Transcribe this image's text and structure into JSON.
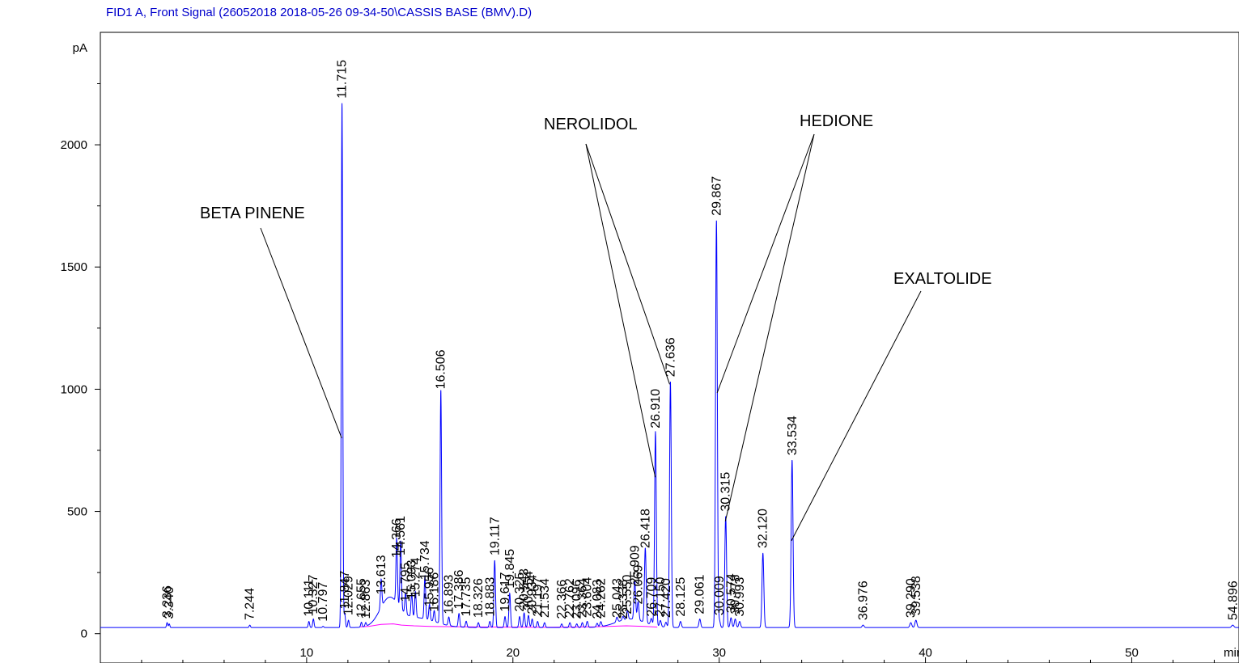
{
  "chart_data": {
    "type": "line",
    "title": "FID1 A, Front Signal (26052018 2018-05-26 09-34-50\\CASSIS BASE (BMV).D)",
    "ylabel": "pA",
    "xlabel": "min",
    "xlim": [
      0,
      55.2
    ],
    "ylim": [
      -120,
      2460
    ],
    "x_ticks": [
      10,
      20,
      30,
      40,
      50
    ],
    "y_ticks": [
      0,
      500,
      1000,
      1500,
      2000
    ],
    "baseline": 25,
    "colors": {
      "signal": "#0000ff",
      "baseline_fit": "#ff00ff",
      "title": "#0000cc"
    },
    "peaks": [
      {
        "rt": 3.236,
        "label": "3.236",
        "height": 45
      },
      {
        "rt": 3.34,
        "label": "3.340",
        "height": 40
      },
      {
        "rt": 7.244,
        "label": "7.244",
        "height": 35
      },
      {
        "rt": 10.111,
        "label": "10.111",
        "height": 50
      },
      {
        "rt": 10.327,
        "label": "10.327",
        "height": 60
      },
      {
        "rt": 10.797,
        "label": "10.797",
        "height": 30
      },
      {
        "rt": 11.715,
        "label": "11.715",
        "height": 2170
      },
      {
        "rt": 11.847,
        "label": "11.847",
        "height": 80
      },
      {
        "rt": 12.029,
        "label": "12.029",
        "height": 55
      },
      {
        "rt": 12.655,
        "label": "12.655",
        "height": 45
      },
      {
        "rt": 12.863,
        "label": "12.863",
        "height": 40
      },
      {
        "rt": 13.613,
        "label": "13.613",
        "height": 140
      },
      {
        "rt": 14.366,
        "label": "14.366",
        "height": 290
      },
      {
        "rt": 14.561,
        "label": "14.561",
        "height": 300
      },
      {
        "rt": 14.795,
        "label": "14.795",
        "height": 110
      },
      {
        "rt": 15.093,
        "label": "15.093",
        "height": 120
      },
      {
        "rt": 15.274,
        "label": "15.274",
        "height": 130
      },
      {
        "rt": 15.734,
        "label": "15.734",
        "height": 200
      },
      {
        "rt": 15.956,
        "label": "15.956",
        "height": 90
      },
      {
        "rt": 16.186,
        "label": "16.186",
        "height": 70
      },
      {
        "rt": 16.506,
        "label": "16.506",
        "height": 980
      },
      {
        "rt": 16.893,
        "label": "16.893",
        "height": 60
      },
      {
        "rt": 17.386,
        "label": "17.386",
        "height": 80
      },
      {
        "rt": 17.735,
        "label": "17.735",
        "height": 50
      },
      {
        "rt": 18.326,
        "label": "18.326",
        "height": 45
      },
      {
        "rt": 18.883,
        "label": "18.883",
        "height": 50
      },
      {
        "rt": 19.117,
        "label": "19.117",
        "height": 300
      },
      {
        "rt": 19.617,
        "label": "19.617",
        "height": 70
      },
      {
        "rt": 19.845,
        "label": "19.845",
        "height": 165
      },
      {
        "rt": 20.325,
        "label": "20.325",
        "height": 70
      },
      {
        "rt": 20.543,
        "label": "20.543",
        "height": 85
      },
      {
        "rt": 20.754,
        "label": "20.754",
        "height": 75
      },
      {
        "rt": 20.934,
        "label": "20.934",
        "height": 60
      },
      {
        "rt": 21.197,
        "label": "21.197",
        "height": 50
      },
      {
        "rt": 21.534,
        "label": "21.534",
        "height": 45
      },
      {
        "rt": 22.366,
        "label": "22.366",
        "height": 40
      },
      {
        "rt": 22.762,
        "label": "22.762",
        "height": 45
      },
      {
        "rt": 23.096,
        "label": "23.096",
        "height": 40
      },
      {
        "rt": 23.364,
        "label": "23.364",
        "height": 45
      },
      {
        "rt": 23.604,
        "label": "23.604",
        "height": 50
      },
      {
        "rt": 24.083,
        "label": "24.083",
        "height": 40
      },
      {
        "rt": 24.262,
        "label": "24.262",
        "height": 45
      },
      {
        "rt": 25.043,
        "label": "25.043",
        "height": 45
      },
      {
        "rt": 25.338,
        "label": "25.338",
        "height": 40
      },
      {
        "rt": 25.55,
        "label": "25.550",
        "height": 60
      },
      {
        "rt": 25.909,
        "label": "25.909",
        "height": 180
      },
      {
        "rt": 26.069,
        "label": "26.069",
        "height": 100
      },
      {
        "rt": 26.418,
        "label": "26.418",
        "height": 330
      },
      {
        "rt": 26.709,
        "label": "26.709",
        "height": 50
      },
      {
        "rt": 26.91,
        "label": "26.910",
        "height": 820
      },
      {
        "rt": 27.15,
        "label": "27.150",
        "height": 50
      },
      {
        "rt": 27.42,
        "label": "27.420",
        "height": 45
      },
      {
        "rt": 27.636,
        "label": "27.636",
        "height": 1030
      },
      {
        "rt": 28.125,
        "label": "28.125",
        "height": 50
      },
      {
        "rt": 29.061,
        "label": "29.061",
        "height": 60
      },
      {
        "rt": 29.867,
        "label": "29.867",
        "height": 1690
      },
      {
        "rt": 30.009,
        "label": "30.009",
        "height": 55
      },
      {
        "rt": 30.315,
        "label": "30.315",
        "height": 480
      },
      {
        "rt": 30.574,
        "label": "30.574",
        "height": 65
      },
      {
        "rt": 30.778,
        "label": "30.778",
        "height": 60
      },
      {
        "rt": 30.993,
        "label": "30.993",
        "height": 50
      },
      {
        "rt": 32.12,
        "label": "32.120",
        "height": 330
      },
      {
        "rt": 33.534,
        "label": "33.534",
        "height": 710
      },
      {
        "rt": 36.976,
        "label": "36.976",
        "height": 35
      },
      {
        "rt": 39.29,
        "label": "39.290",
        "height": 45
      },
      {
        "rt": 39.538,
        "label": "39.538",
        "height": 55
      },
      {
        "rt": 54.896,
        "label": "54.896",
        "height": 35
      }
    ],
    "annotations": [
      {
        "text": "BETA PINENE",
        "targets": [
          [
            11.7,
            800
          ]
        ]
      },
      {
        "text": "NEROLIDOL",
        "targets": [
          [
            26.9,
            640
          ],
          [
            27.6,
            1020
          ]
        ]
      },
      {
        "text": "HEDIONE",
        "targets": [
          [
            29.9,
            985
          ],
          [
            30.3,
            460
          ]
        ]
      },
      {
        "text": "EXALTOLIDE",
        "targets": [
          [
            33.5,
            380
          ]
        ]
      }
    ]
  }
}
